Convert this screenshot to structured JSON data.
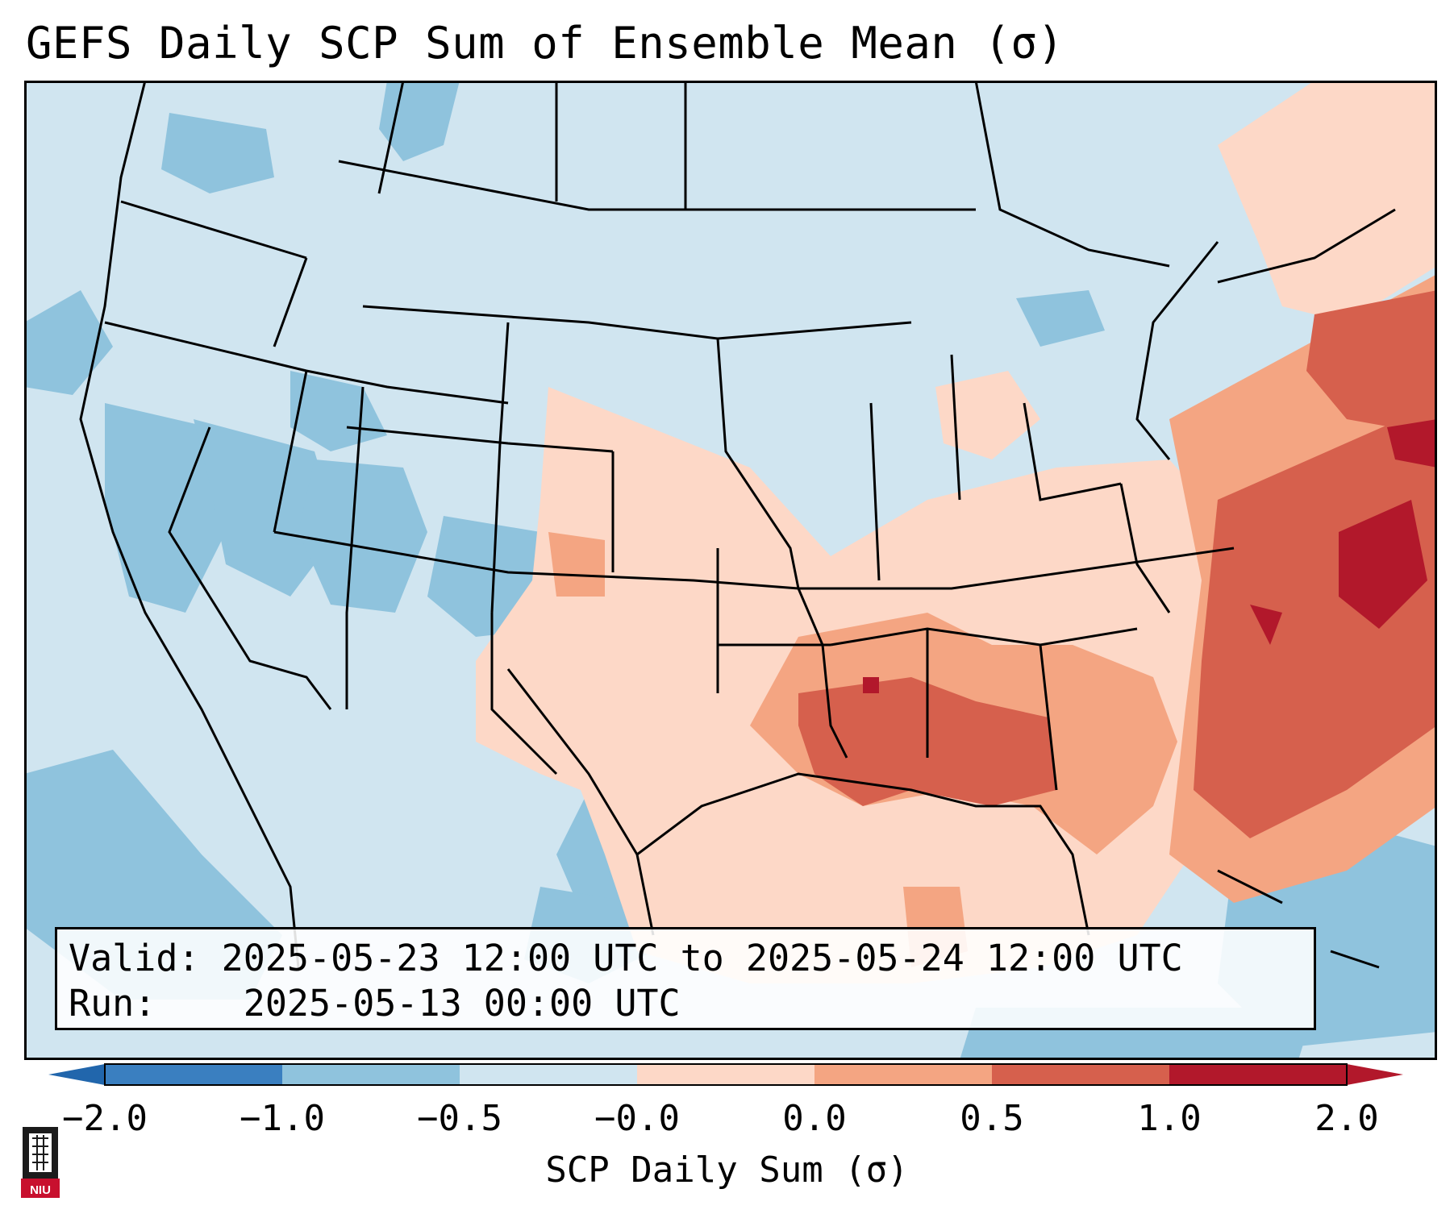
{
  "title": "GEFS Daily SCP Sum of Ensemble Mean (σ)",
  "info": {
    "valid_label": "Valid:",
    "valid_value": "2025-05-23 12:00 UTC to 2025-05-24 12:00 UTC",
    "run_label": "Run:",
    "run_value": "2025-05-13 00:00 UTC"
  },
  "colorbar": {
    "label": "SCP Daily Sum (σ)",
    "ticks": [
      "−2.0",
      "−1.0",
      "−0.5",
      "−0.0",
      "0.0",
      "0.5",
      "1.0",
      "2.0"
    ],
    "colors": [
      "#3a7fc0",
      "#8fc3dd",
      "#d0e5f0",
      "#fdd8c7",
      "#f4a582",
      "#d6604d",
      "#b2182b"
    ],
    "extend_low_color": "#2166ac",
    "extend_high_color": "#b2182b"
  },
  "logo": {
    "text": "NIU",
    "color": "#c8102e"
  },
  "colors": {
    "ocean_bg": "#d0e5f0",
    "neg_moderate": "#8fc3dd",
    "pos_light": "#fdd8c7",
    "pos_moderate": "#f4a582",
    "pos_high": "#d6604d",
    "pos_extreme": "#b2182b"
  }
}
